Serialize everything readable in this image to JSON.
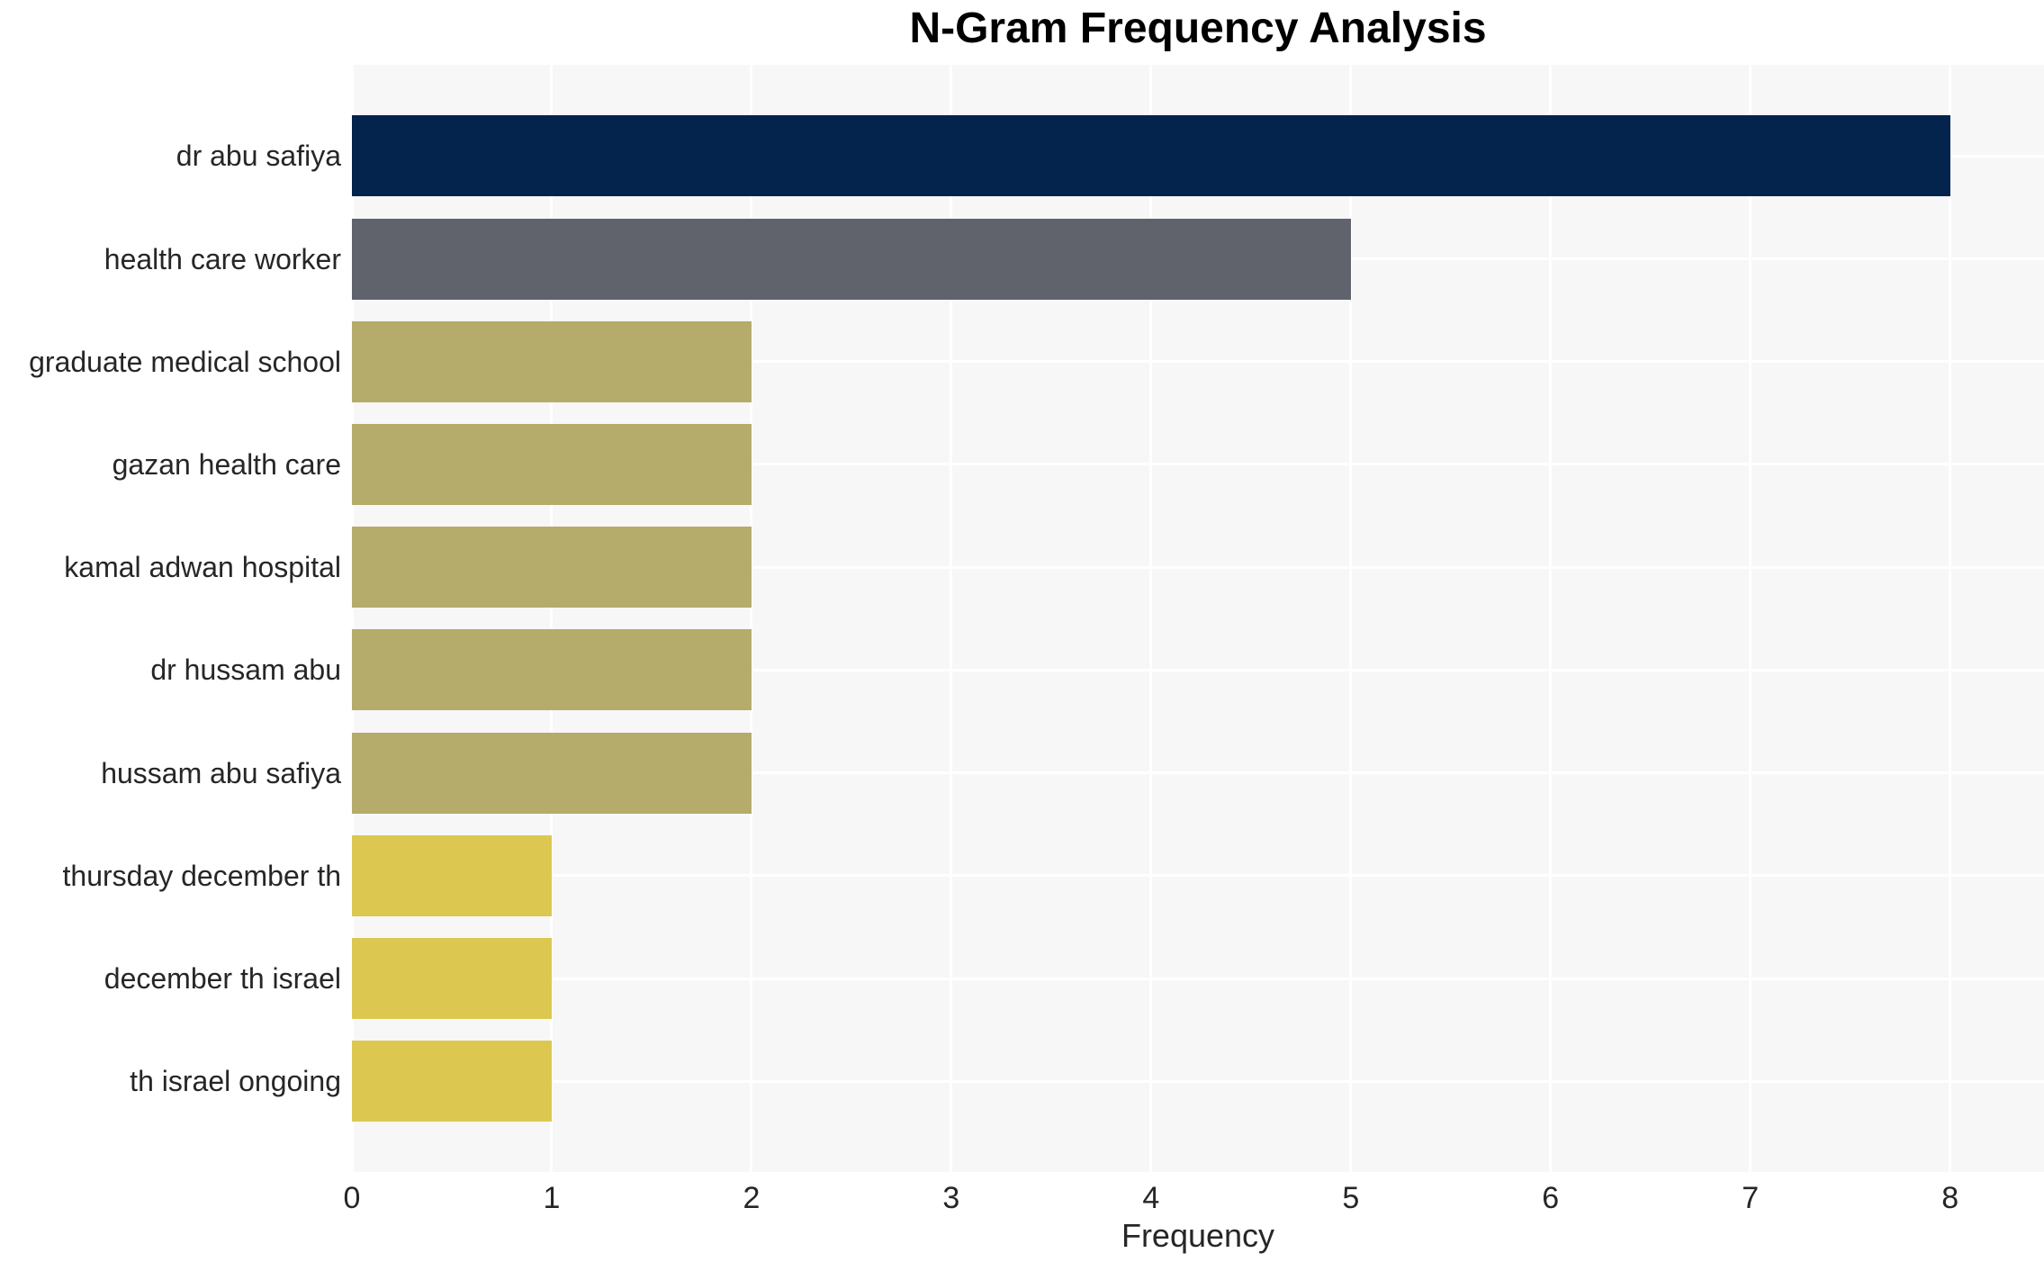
{
  "chart_data": {
    "type": "bar",
    "orientation": "horizontal",
    "title": "N-Gram Frequency Analysis",
    "xlabel": "Frequency",
    "categories": [
      "dr abu safiya",
      "health care worker",
      "graduate medical school",
      "gazan health care",
      "kamal adwan hospital",
      "dr hussam abu",
      "hussam abu safiya",
      "thursday december th",
      "december th israel",
      "th israel ongoing"
    ],
    "values": [
      8,
      5,
      2,
      2,
      2,
      2,
      2,
      1,
      1,
      1
    ],
    "bar_colors": [
      "#04234d",
      "#60626c",
      "#b5ab6b",
      "#b5ab6b",
      "#b5ab6b",
      "#b5ab6b",
      "#b5ab6b",
      "#dcc851",
      "#dcc851",
      "#dcc851"
    ],
    "xticks": [
      0,
      1,
      2,
      3,
      4,
      5,
      6,
      7,
      8
    ],
    "xlim": [
      0,
      8.47
    ],
    "grid": true,
    "legend": "none",
    "plot_background": "#f7f7f8",
    "gridline_color": "#ffffff",
    "text_color": "#262626",
    "title_color": "#000000"
  }
}
